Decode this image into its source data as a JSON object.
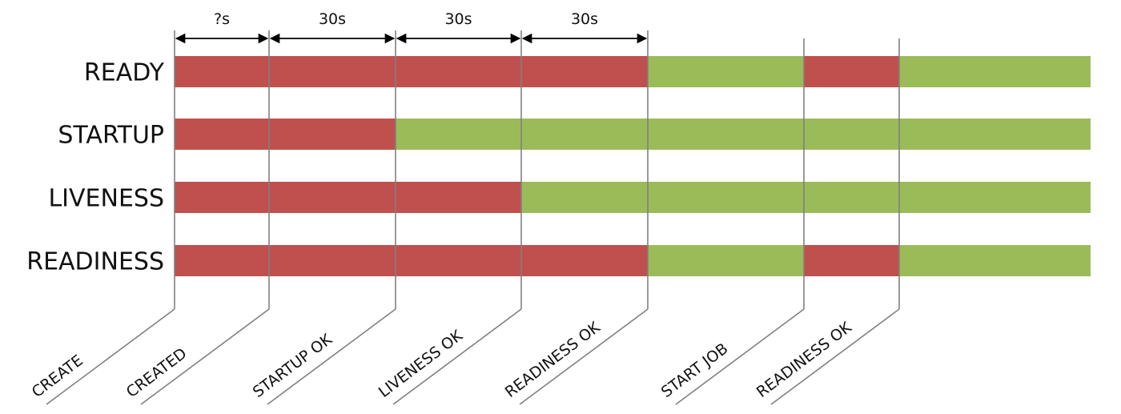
{
  "colors": {
    "fail": "#c0504d",
    "ok": "#9bbb59",
    "marker_line": "#808080",
    "arrow": "#000000",
    "text": "#111111"
  },
  "events": [
    {
      "key": "create",
      "label": "CREATE"
    },
    {
      "key": "created",
      "label": "CREATED"
    },
    {
      "key": "startup-ok",
      "label": "STARTUP OK"
    },
    {
      "key": "liveness-ok",
      "label": "LIVENESS OK"
    },
    {
      "key": "readiness-ok",
      "label": "READINESS OK"
    },
    {
      "key": "start-job",
      "label": "START JOB"
    },
    {
      "key": "readiness-ok-2",
      "label": "READINESS OK"
    }
  ],
  "durations": [
    {
      "label": "?s",
      "from": 0,
      "to": 1
    },
    {
      "label": "30s",
      "from": 1,
      "to": 2
    },
    {
      "label": "30s",
      "from": 2,
      "to": 3
    },
    {
      "label": "30s",
      "from": 3,
      "to": 4
    }
  ],
  "rows": [
    {
      "key": "ready",
      "label": "READY",
      "segments": [
        {
          "from": 0,
          "to": 4,
          "state": "fail"
        },
        {
          "from": 4,
          "to": 5,
          "state": "ok"
        },
        {
          "from": 5,
          "to": 6,
          "state": "fail"
        },
        {
          "from": 6,
          "to": 7,
          "state": "ok"
        }
      ]
    },
    {
      "key": "startup",
      "label": "STARTUP",
      "segments": [
        {
          "from": 0,
          "to": 2,
          "state": "fail"
        },
        {
          "from": 2,
          "to": 7,
          "state": "ok"
        }
      ]
    },
    {
      "key": "liveness",
      "label": "LIVENESS",
      "segments": [
        {
          "from": 0,
          "to": 3,
          "state": "fail"
        },
        {
          "from": 3,
          "to": 7,
          "state": "ok"
        }
      ]
    },
    {
      "key": "readiness",
      "label": "READINESS",
      "segments": [
        {
          "from": 0,
          "to": 4,
          "state": "fail"
        },
        {
          "from": 4,
          "to": 5,
          "state": "ok"
        },
        {
          "from": 5,
          "to": 6,
          "state": "fail"
        },
        {
          "from": 6,
          "to": 7,
          "state": "ok"
        }
      ]
    }
  ]
}
